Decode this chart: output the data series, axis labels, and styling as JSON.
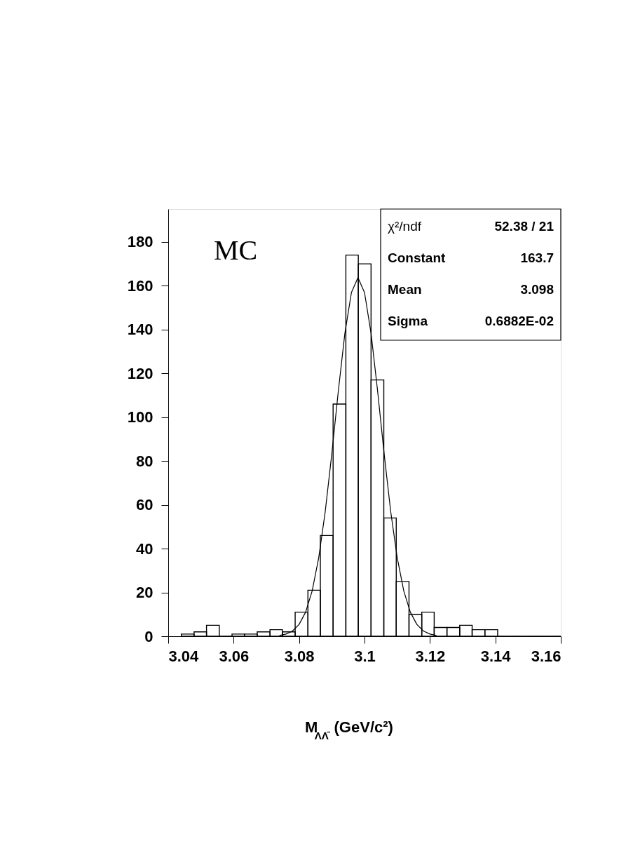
{
  "chart_data": {
    "type": "histogram",
    "color": "#000000",
    "bins": [
      3.044,
      3.0479,
      3.0517,
      3.0556,
      3.0595,
      3.0633,
      3.0672,
      3.0711,
      3.0749,
      3.0788,
      3.0827,
      3.0865,
      3.0904,
      3.0943,
      3.0981,
      3.102,
      3.1059,
      3.1097,
      3.1136,
      3.1175,
      3.1213,
      3.1252,
      3.1291,
      3.1329,
      3.1368,
      3.1407,
      3.1445,
      3.1484,
      3.1523,
      3.1561,
      3.16
    ],
    "values": [
      1,
      2,
      5,
      0,
      1,
      1,
      2,
      3,
      2,
      11,
      21,
      46,
      106,
      174,
      170,
      117,
      54,
      25,
      10,
      11,
      4,
      4,
      5,
      3,
      3,
      0,
      0,
      0,
      0,
      0
    ],
    "series": [
      {
        "type": "line",
        "color": "#000000",
        "x": [
          3.074,
          3.076,
          3.078,
          3.08,
          3.082,
          3.084,
          3.086,
          3.088,
          3.09,
          3.092,
          3.094,
          3.096,
          3.098,
          3.1,
          3.102,
          3.104,
          3.106,
          3.108,
          3.11,
          3.112,
          3.114,
          3.116,
          3.118,
          3.12,
          3.122
        ],
        "values": [
          0.4,
          1.0,
          2.4,
          5.4,
          11.0,
          20.7,
          35.8,
          57.0,
          83.3,
          112.0,
          138.3,
          156.9,
          163.7,
          156.9,
          138.3,
          112.0,
          83.3,
          57.0,
          35.8,
          20.7,
          11.0,
          5.4,
          2.4,
          1.0,
          0.4
        ]
      }
    ],
    "xlabel": "M$_{ΛΛ̄}$(GeV/c²)",
    "xlim": [
      3.04,
      3.16
    ],
    "xticks": [
      3.04,
      3.06,
      3.08,
      3.1,
      3.12,
      3.14,
      3.16
    ],
    "ylim": [
      0,
      195
    ],
    "yticks": [
      0,
      20,
      40,
      60,
      80,
      100,
      120,
      140,
      160,
      180
    ],
    "grid": false,
    "annotations": [
      "MC",
      "χ²/ndf",
      "52.38  /  21",
      "Constant",
      "163.7",
      "Mean",
      "3.098",
      "Sigma",
      "0.6882E-02"
    ]
  }
}
